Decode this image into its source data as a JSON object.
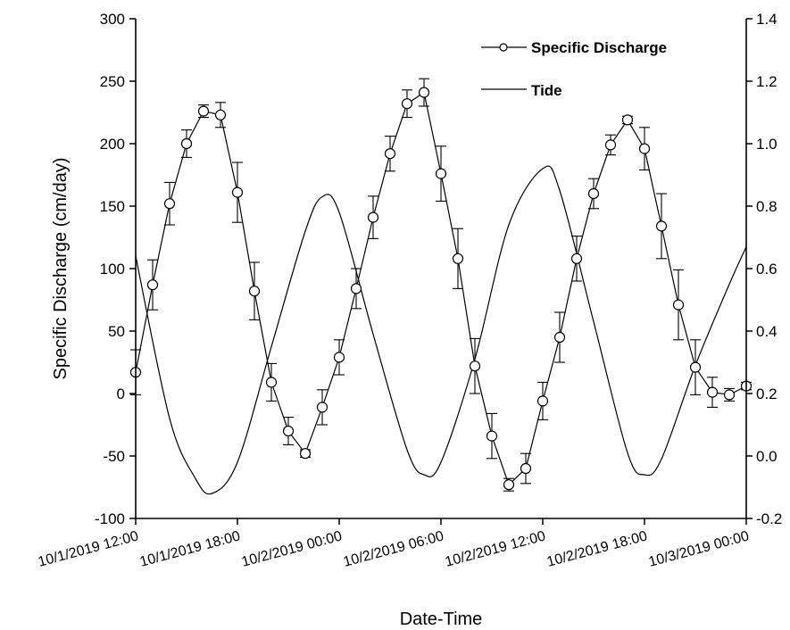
{
  "chart_data": {
    "type": "line",
    "xlabel": "Date-Time",
    "ylabel": "Specific Discharge (cm/day)",
    "ylim": [
      -100,
      300
    ],
    "y2lim": [
      -0.2,
      1.4
    ],
    "x_ticks": [
      "10/1/2019 12:00",
      "10/1/2019 18:00",
      "10/2/2019 00:00",
      "10/2/2019 06:00",
      "10/2/2019 12:00",
      "10/2/2019 18:00",
      "10/3/2019 00:00"
    ],
    "y_ticks": [
      "-100",
      "-50",
      "0",
      "50",
      "100",
      "150",
      "200",
      "250",
      "300"
    ],
    "y2_ticks": [
      "-0.2",
      "0.0",
      "0.2",
      "0.4",
      "0.6",
      "0.8",
      "1.0",
      "1.2",
      "1.4"
    ],
    "legend_position": "top-right",
    "grid": false,
    "series": [
      {
        "name": "Specific Discharge",
        "axis": "left",
        "marker": "open-circle",
        "color": "#000000",
        "points": [
          {
            "x": "10/1/2019 12:00",
            "y": 17,
            "err": 18
          },
          {
            "x": "10/1/2019 13:00",
            "y": 87,
            "err": 20
          },
          {
            "x": "10/1/2019 14:00",
            "y": 152,
            "err": 17
          },
          {
            "x": "10/1/2019 15:00",
            "y": 200,
            "err": 11
          },
          {
            "x": "10/1/2019 16:00",
            "y": 226,
            "err": 5
          },
          {
            "x": "10/1/2019 17:00",
            "y": 223,
            "err": 10
          },
          {
            "x": "10/1/2019 18:00",
            "y": 161,
            "err": 24
          },
          {
            "x": "10/1/2019 19:00",
            "y": 82,
            "err": 23
          },
          {
            "x": "10/1/2019 20:00",
            "y": 9,
            "err": 15
          },
          {
            "x": "10/1/2019 21:00",
            "y": -30,
            "err": 11
          },
          {
            "x": "10/1/2019 22:00",
            "y": -48,
            "err": 3
          },
          {
            "x": "10/1/2019 23:00",
            "y": -11,
            "err": 14
          },
          {
            "x": "10/2/2019 00:00",
            "y": 29,
            "err": 14
          },
          {
            "x": "10/2/2019 01:00",
            "y": 84,
            "err": 16
          },
          {
            "x": "10/2/2019 02:00",
            "y": 141,
            "err": 17
          },
          {
            "x": "10/2/2019 03:00",
            "y": 192,
            "err": 14
          },
          {
            "x": "10/2/2019 04:00",
            "y": 232,
            "err": 11
          },
          {
            "x": "10/2/2019 05:00",
            "y": 241,
            "err": 11
          },
          {
            "x": "10/2/2019 06:00",
            "y": 176,
            "err": 22
          },
          {
            "x": "10/2/2019 07:00",
            "y": 108,
            "err": 24
          },
          {
            "x": "10/2/2019 08:00",
            "y": 22,
            "err": 22
          },
          {
            "x": "10/2/2019 09:00",
            "y": -34,
            "err": 18
          },
          {
            "x": "10/2/2019 10:00",
            "y": -73,
            "err": 5
          },
          {
            "x": "10/2/2019 11:00",
            "y": -60,
            "err": 12
          },
          {
            "x": "10/2/2019 12:00",
            "y": -6,
            "err": 15
          },
          {
            "x": "10/2/2019 13:00",
            "y": 45,
            "err": 20
          },
          {
            "x": "10/2/2019 14:00",
            "y": 108,
            "err": 18
          },
          {
            "x": "10/2/2019 15:00",
            "y": 160,
            "err": 12
          },
          {
            "x": "10/2/2019 16:00",
            "y": 199,
            "err": 8
          },
          {
            "x": "10/2/2019 17:00",
            "y": 219,
            "err": 3
          },
          {
            "x": "10/2/2019 18:00",
            "y": 196,
            "err": 17
          },
          {
            "x": "10/2/2019 19:00",
            "y": 134,
            "err": 26
          },
          {
            "x": "10/2/2019 20:00",
            "y": 71,
            "err": 28
          },
          {
            "x": "10/2/2019 21:00",
            "y": 21,
            "err": 22
          },
          {
            "x": "10/2/2019 22:00",
            "y": 1,
            "err": 12
          },
          {
            "x": "10/2/2019 23:00",
            "y": -1,
            "err": 5
          },
          {
            "x": "10/3/2019 00:00",
            "y": 6,
            "err": 3
          }
        ]
      },
      {
        "name": "Tide",
        "axis": "right",
        "marker": "none",
        "color": "#000000",
        "points": [
          {
            "x": "10/1/2019 12:00",
            "y": 0.64
          },
          {
            "x": "10/1/2019 14:00",
            "y": 0.12
          },
          {
            "x": "10/1/2019 15:30",
            "y": -0.07
          },
          {
            "x": "10/1/2019 16:30",
            "y": -0.12
          },
          {
            "x": "10/1/2019 18:00",
            "y": -0.02
          },
          {
            "x": "10/1/2019 20:00",
            "y": 0.35
          },
          {
            "x": "10/1/2019 22:00",
            "y": 0.72
          },
          {
            "x": "10/1/2019 23:00",
            "y": 0.83
          },
          {
            "x": "10/2/2019 00:00",
            "y": 0.78
          },
          {
            "x": "10/2/2019 02:00",
            "y": 0.39
          },
          {
            "x": "10/2/2019 04:00",
            "y": 0.02
          },
          {
            "x": "10/2/2019 05:00",
            "y": -0.06
          },
          {
            "x": "10/2/2019 06:00",
            "y": -0.02
          },
          {
            "x": "10/2/2019 08:00",
            "y": 0.31
          },
          {
            "x": "10/2/2019 10:00",
            "y": 0.74
          },
          {
            "x": "10/2/2019 12:00",
            "y": 0.92
          },
          {
            "x": "10/2/2019 13:00",
            "y": 0.85
          },
          {
            "x": "10/2/2019 15:00",
            "y": 0.43
          },
          {
            "x": "10/2/2019 17:00",
            "y": 0.01
          },
          {
            "x": "10/2/2019 18:00",
            "y": -0.06
          },
          {
            "x": "10/2/2019 19:00",
            "y": -0.01
          },
          {
            "x": "10/2/2019 21:00",
            "y": 0.29
          },
          {
            "x": "10/2/2019 23:00",
            "y": 0.55
          },
          {
            "x": "10/3/2019 00:00",
            "y": 0.67
          }
        ]
      }
    ]
  }
}
